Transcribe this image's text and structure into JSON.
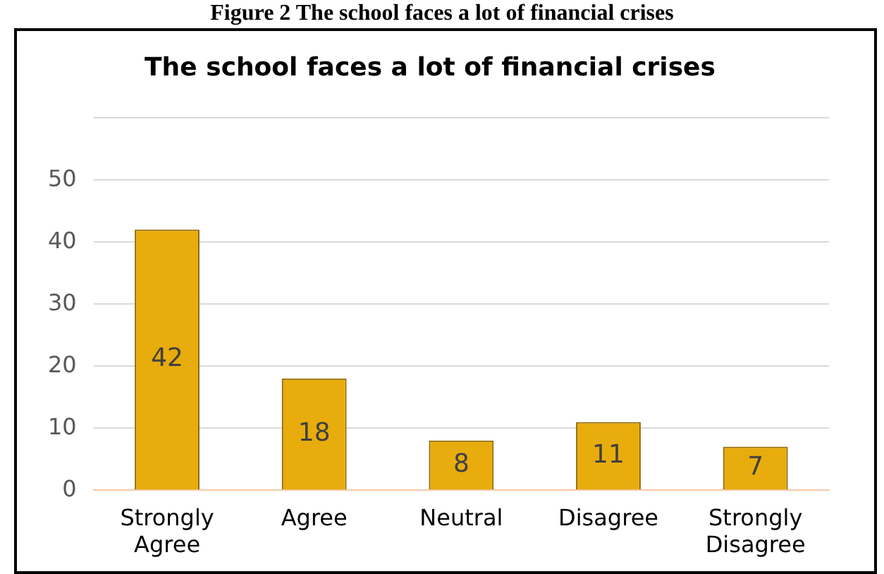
{
  "chart_data": {
    "type": "bar",
    "title": "The school faces a lot of financial crises",
    "annotations": [
      "Figure 2 The school faces a lot of financial crises"
    ],
    "categories": [
      "Strongly Agree",
      "Agree",
      "Neutral",
      "Disagree",
      "Strongly Disagree"
    ],
    "values": [
      42,
      18,
      8,
      11,
      7
    ],
    "color": "#e8ac0c",
    "ylim": [
      0,
      60
    ],
    "yticks": [
      0,
      10,
      20,
      30,
      40,
      50,
      {
        "value": 60,
        "label": null
      }
    ],
    "grid": "y",
    "legend": false,
    "data_labels": true
  }
}
